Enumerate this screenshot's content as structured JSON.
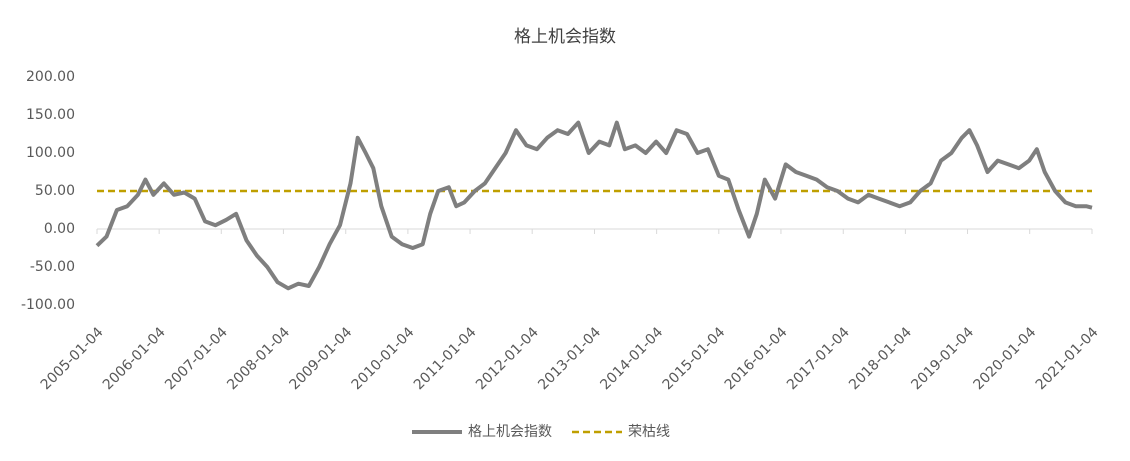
{
  "chart_data": {
    "type": "line",
    "title": "格上机会指数",
    "x": [
      "2005-01-04",
      "2005-03-01",
      "2005-05-01",
      "2005-07-01",
      "2005-09-01",
      "2005-10-15",
      "2005-12-01",
      "2006-02-01",
      "2006-04-01",
      "2006-06-01",
      "2006-08-01",
      "2006-10-01",
      "2006-12-01",
      "2007-02-01",
      "2007-04-01",
      "2007-06-01",
      "2007-08-01",
      "2007-10-01",
      "2007-12-01",
      "2008-02-01",
      "2008-04-01",
      "2008-06-01",
      "2008-08-01",
      "2008-10-01",
      "2008-12-01",
      "2009-02-01",
      "2009-03-15",
      "2009-05-01",
      "2009-06-15",
      "2009-08-01",
      "2009-10-01",
      "2009-12-01",
      "2010-02-01",
      "2010-04-01",
      "2010-05-15",
      "2010-07-01",
      "2010-09-01",
      "2010-10-15",
      "2010-12-01",
      "2011-02-01",
      "2011-04-01",
      "2011-06-01",
      "2011-08-01",
      "2011-10-01",
      "2011-12-01",
      "2012-02-01",
      "2012-04-01",
      "2012-06-01",
      "2012-08-01",
      "2012-10-01",
      "2012-12-01",
      "2013-02-01",
      "2013-04-01",
      "2013-05-15",
      "2013-07-01",
      "2013-09-01",
      "2013-11-01",
      "2014-01-01",
      "2014-03-01",
      "2014-05-01",
      "2014-07-01",
      "2014-09-01",
      "2014-11-01",
      "2015-01-04",
      "2015-03-01",
      "2015-05-01",
      "2015-07-01",
      "2015-08-15",
      "2015-10-01",
      "2015-12-01",
      "2016-02-01",
      "2016-04-01",
      "2016-06-01",
      "2016-08-01",
      "2016-10-01",
      "2016-12-01",
      "2017-02-01",
      "2017-04-01",
      "2017-06-01",
      "2017-08-01",
      "2017-10-01",
      "2017-12-01",
      "2018-02-01",
      "2018-04-01",
      "2018-06-01",
      "2018-08-01",
      "2018-10-01",
      "2018-12-01",
      "2019-01-15",
      "2019-03-01",
      "2019-05-01",
      "2019-07-01",
      "2019-09-01",
      "2019-11-01",
      "2020-01-01",
      "2020-02-15",
      "2020-04-01",
      "2020-06-01",
      "2020-08-01",
      "2020-10-01",
      "2020-12-01",
      "2021-01-04"
    ],
    "series": [
      {
        "name": "格上机会指数",
        "color": "#7f7f7f",
        "values": [
          -22,
          -10,
          25,
          30,
          45,
          65,
          45,
          60,
          45,
          48,
          40,
          10,
          5,
          12,
          20,
          -15,
          -35,
          -50,
          -70,
          -78,
          -72,
          -75,
          -50,
          -20,
          5,
          60,
          120,
          100,
          80,
          30,
          -10,
          -20,
          -25,
          -20,
          20,
          50,
          55,
          30,
          35,
          50,
          60,
          80,
          100,
          130,
          110,
          105,
          120,
          130,
          125,
          140,
          100,
          115,
          110,
          140,
          105,
          110,
          100,
          115,
          100,
          130,
          125,
          100,
          105,
          70,
          65,
          25,
          -10,
          20,
          65,
          40,
          85,
          75,
          70,
          65,
          55,
          50,
          40,
          35,
          45,
          40,
          35,
          30,
          35,
          50,
          60,
          90,
          100,
          120,
          130,
          110,
          75,
          90,
          85,
          80,
          90,
          105,
          75,
          50,
          35,
          30,
          30,
          28
        ]
      }
    ],
    "reference_lines": [
      {
        "name": "荣枯线",
        "value": 50,
        "color": "#bf9f00",
        "dashed": true
      }
    ],
    "xlim": [
      "2005-01-04",
      "2021-01-04"
    ],
    "xticks": [
      "2005-01-04",
      "2006-01-04",
      "2007-01-04",
      "2008-01-04",
      "2009-01-04",
      "2010-01-04",
      "2011-01-04",
      "2012-01-04",
      "2013-01-04",
      "2014-01-04",
      "2015-01-04",
      "2016-01-04",
      "2017-01-04",
      "2018-01-04",
      "2019-01-04",
      "2020-01-04",
      "2021-01-04"
    ],
    "ylim": [
      -100,
      200
    ],
    "yticks": [
      {
        "value": -100,
        "label": "-100.00"
      },
      {
        "value": -50,
        "label": "-50.00"
      },
      {
        "value": 0,
        "label": "0.00"
      },
      {
        "value": 50,
        "label": "50.00"
      },
      {
        "value": 100,
        "label": "100.00"
      },
      {
        "value": 150,
        "label": "150.00"
      },
      {
        "value": 200,
        "label": "200.00"
      }
    ],
    "legend": "bottom"
  }
}
